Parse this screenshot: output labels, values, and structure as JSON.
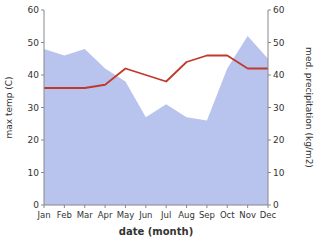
{
  "chart_data": {
    "type": "line",
    "xlabel": "date (month)",
    "ylabel": "max temp (C)",
    "y2label": "med. precipitation (kg/m2)",
    "categories": [
      "Jan",
      "Feb",
      "Mar",
      "Apr",
      "May",
      "Jun",
      "Jul",
      "Aug",
      "Sep",
      "Oct",
      "Nov",
      "Dec"
    ],
    "series": [
      {
        "type": "area",
        "color": "#b8c4ee",
        "values": [
          48,
          46,
          48,
          42,
          38,
          27,
          31,
          27,
          26,
          42,
          52,
          45
        ]
      },
      {
        "type": "line",
        "color": "#c0392b",
        "values": [
          36,
          36,
          36,
          37,
          42,
          40,
          38,
          44,
          46,
          46,
          42,
          42
        ]
      }
    ],
    "ylim": [
      0,
      60
    ],
    "yticks": [
      0,
      10,
      20,
      30,
      40,
      50,
      60
    ],
    "y2lim": [
      0,
      60
    ],
    "y2ticks": [
      0,
      10,
      20,
      30,
      40,
      50,
      60
    ]
  }
}
